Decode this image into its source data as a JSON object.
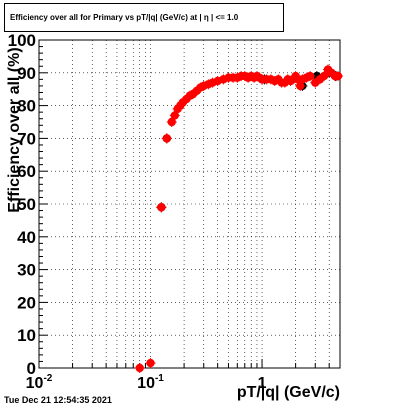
{
  "timestamp": "Tue Dec 21 12:54:35 2021",
  "chart_data": {
    "type": "scatter",
    "title": "Efficiency over all for Primary vs pT/|q| (GeV/c) at | η | <= 1.0",
    "xlabel": "pT/|q| (GeV/c)",
    "ylabel": "Efficiency over all (%)",
    "x_scale": "log",
    "xlim": [
      0.01,
      5
    ],
    "ylim": [
      0,
      100
    ],
    "grid": true,
    "y_ticks": [
      "0",
      "10",
      "20",
      "30",
      "40",
      "50",
      "60",
      "70",
      "80",
      "90",
      "100"
    ],
    "x_ticks": [
      "10^-2",
      "10^-1",
      "1"
    ],
    "series": [
      {
        "color": "#ff0000",
        "x": [
          0.08,
          0.1,
          0.125,
          0.14,
          0.155,
          0.165,
          0.175,
          0.185,
          0.195,
          0.21,
          0.225,
          0.24,
          0.26,
          0.28,
          0.3,
          0.33,
          0.36,
          0.4,
          0.45,
          0.5,
          0.55,
          0.6,
          0.65,
          0.7,
          0.75,
          0.8,
          0.85,
          0.9,
          0.95,
          1.0,
          1.1,
          1.2,
          1.3,
          1.4,
          1.5,
          1.6,
          1.7,
          1.8,
          1.9,
          2.0,
          2.1,
          2.2,
          2.3,
          2.5,
          2.7,
          3.0,
          3.3,
          3.6,
          3.9,
          4.2,
          4.5,
          4.8
        ],
        "y": [
          0,
          1.5,
          49,
          70,
          75,
          77,
          79,
          80,
          81,
          82,
          83,
          83.5,
          84.5,
          85.5,
          86,
          86.5,
          87,
          87.5,
          88,
          88.5,
          88.5,
          88.5,
          89,
          89,
          88.5,
          89,
          88.5,
          89,
          88.5,
          88,
          88,
          88,
          87.5,
          88,
          87,
          87,
          88,
          87.5,
          88,
          89,
          88,
          86,
          88,
          88.5,
          89,
          87,
          88,
          89,
          91,
          90,
          89,
          89
        ]
      },
      {
        "color": "#000000",
        "x": [
          0.125,
          0.14,
          1.05,
          2.3,
          3.1,
          4.0,
          4.6
        ],
        "y": [
          49,
          70,
          88,
          86,
          89,
          90,
          89
        ]
      }
    ]
  }
}
